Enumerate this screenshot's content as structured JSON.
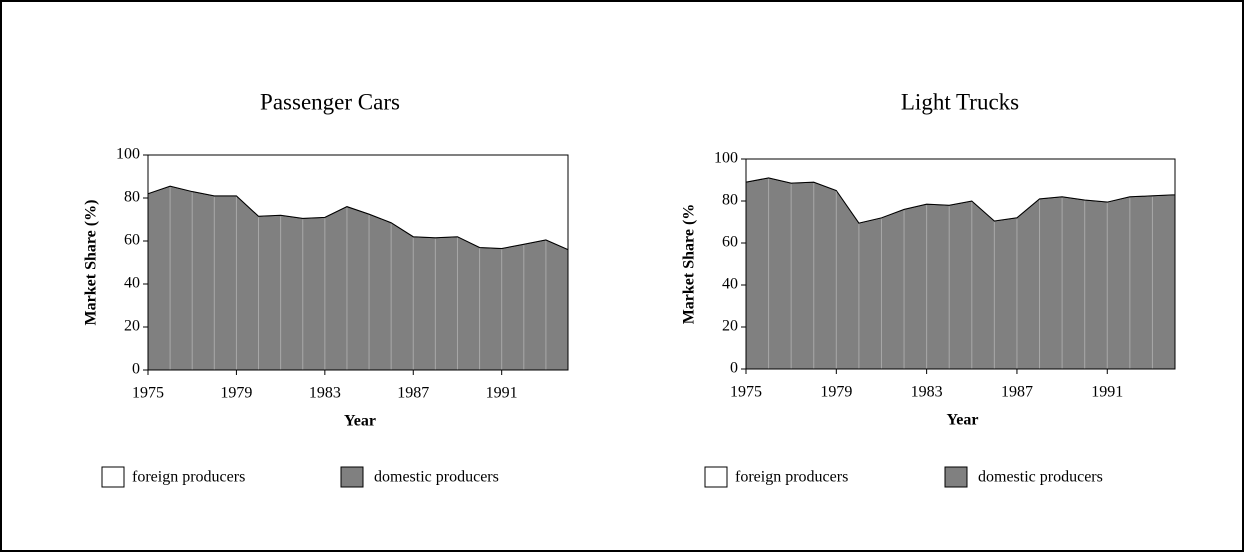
{
  "chart_data": [
    {
      "type": "area",
      "title": "Passenger Cars",
      "x_label": "Year",
      "y_label": "Market Share (%)",
      "x": [
        1975,
        1976,
        1977,
        1978,
        1979,
        1980,
        1981,
        1982,
        1983,
        1984,
        1985,
        1986,
        1987,
        1988,
        1989,
        1990,
        1991,
        1992,
        1993,
        1994
      ],
      "series": [
        {
          "name": "domestic producers",
          "color": "#808080",
          "values": [
            82,
            85.5,
            83,
            81,
            81,
            71.5,
            72,
            70.5,
            71,
            76,
            72.5,
            68.5,
            62,
            61.5,
            62,
            57,
            56.5,
            58.5,
            60.5,
            56
          ]
        },
        {
          "name": "foreign producers",
          "color": "#ffffff",
          "values": [
            18,
            14.5,
            17,
            19,
            19,
            28.5,
            28,
            29.5,
            29,
            24,
            27.5,
            31.5,
            38,
            38.5,
            38,
            43,
            43.5,
            41.5,
            39.5,
            44
          ]
        }
      ],
      "xlim": [
        1975,
        1994
      ],
      "xticks": [
        1975,
        1979,
        1983,
        1987,
        1991
      ],
      "ylim": [
        0,
        100
      ],
      "yticks": [
        0,
        20,
        40,
        60,
        80,
        100
      ]
    },
    {
      "type": "area",
      "title": "Light Trucks",
      "x_label": "Year",
      "y_label": "Market Share (%",
      "x": [
        1975,
        1976,
        1977,
        1978,
        1979,
        1980,
        1981,
        1982,
        1983,
        1984,
        1985,
        1986,
        1987,
        1988,
        1989,
        1990,
        1991,
        1992,
        1993,
        1994
      ],
      "series": [
        {
          "name": "domestic producers",
          "color": "#808080",
          "values": [
            89,
            91,
            88.5,
            89,
            85,
            69.5,
            72,
            76,
            78.5,
            78,
            80,
            70.5,
            72,
            81,
            82,
            80.5,
            79.5,
            82,
            82.5,
            83
          ]
        },
        {
          "name": "foreign producers",
          "color": "#ffffff",
          "values": [
            11,
            9,
            11.5,
            11,
            15,
            30.5,
            28,
            24,
            21.5,
            22,
            20,
            29.5,
            28,
            19,
            18,
            19.5,
            20.5,
            18,
            17.5,
            17
          ]
        }
      ],
      "xlim": [
        1975,
        1994
      ],
      "xticks": [
        1975,
        1979,
        1983,
        1987,
        1991
      ],
      "ylim": [
        0,
        100
      ],
      "yticks": [
        0,
        20,
        40,
        60,
        80,
        100
      ]
    }
  ]
}
